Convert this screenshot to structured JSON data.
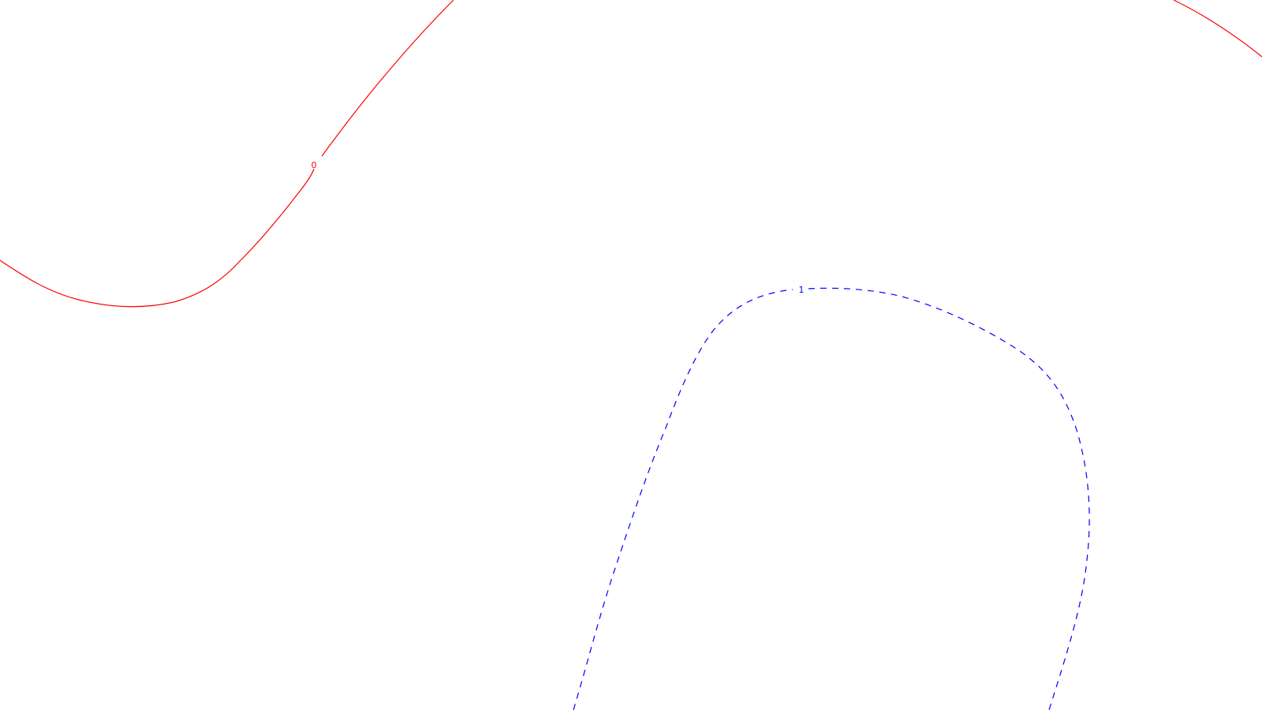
{
  "contours": [
    {
      "id": "contour-0",
      "label": "0",
      "color": "#ff0000",
      "style": "solid"
    },
    {
      "id": "contour-1",
      "label": "1",
      "color": "#0000ff",
      "style": "dashed"
    }
  ]
}
